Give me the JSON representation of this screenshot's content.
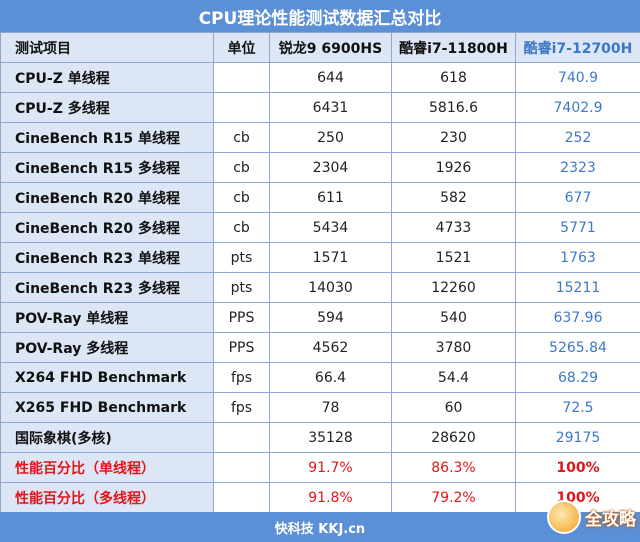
{
  "title": "CPU理论性能测试数据汇总对比",
  "headers": [
    "测试项目",
    "单位",
    "锐龙9 6900HS",
    "酷睿i7-11800H",
    "酷睿i7-12700H"
  ],
  "rows": [
    {
      "item": "CPU-Z 单线程",
      "unit": "",
      "v1": "644",
      "v2": "618",
      "v3": "740.9"
    },
    {
      "item": "CPU-Z 多线程",
      "unit": "",
      "v1": "6431",
      "v2": "5816.6",
      "v3": "7402.9"
    },
    {
      "item": "CineBench R15 单线程",
      "unit": "cb",
      "v1": "250",
      "v2": "230",
      "v3": "252"
    },
    {
      "item": "CineBench R15 多线程",
      "unit": "cb",
      "v1": "2304",
      "v2": "1926",
      "v3": "2323"
    },
    {
      "item": "CineBench R20 单线程",
      "unit": "cb",
      "v1": "611",
      "v2": "582",
      "v3": "677"
    },
    {
      "item": "CineBench R20 多线程",
      "unit": "cb",
      "v1": "5434",
      "v2": "4733",
      "v3": "5771"
    },
    {
      "item": "CineBench R23 单线程",
      "unit": "pts",
      "v1": "1571",
      "v2": "1521",
      "v3": "1763"
    },
    {
      "item": "CineBench R23 多线程",
      "unit": "pts",
      "v1": "14030",
      "v2": "12260",
      "v3": "15211"
    },
    {
      "item": "POV-Ray 单线程",
      "unit": "PPS",
      "v1": "594",
      "v2": "540",
      "v3": "637.96"
    },
    {
      "item": "POV-Ray 多线程",
      "unit": "PPS",
      "v1": "4562",
      "v2": "3780",
      "v3": "5265.84"
    },
    {
      "item": "X264 FHD Benchmark",
      "unit": "fps",
      "v1": "66.4",
      "v2": "54.4",
      "v3": "68.29"
    },
    {
      "item": "X265 FHD Benchmark",
      "unit": "fps",
      "v1": "78",
      "v2": "60",
      "v3": "72.5"
    },
    {
      "item": "国际象棋(多核)",
      "unit": "",
      "v1": "35128",
      "v2": "28620",
      "v3": "29175"
    },
    {
      "item": "性能百分比（单线程）",
      "unit": "",
      "v1": "91.7%",
      "v2": "86.3%",
      "v3": "100%",
      "highlight": true
    },
    {
      "item": "性能百分比（多线程）",
      "unit": "",
      "v1": "91.8%",
      "v2": "79.2%",
      "v3": "100%",
      "highlight": true
    }
  ],
  "footer": "快科技 KKJ.cn",
  "watermark": "全攻略",
  "colors": {
    "header_bar": "#5b8fd6",
    "label_bg": "#dce6f5",
    "highlight_blue": "#3d78c8",
    "red": "#e0161b"
  }
}
